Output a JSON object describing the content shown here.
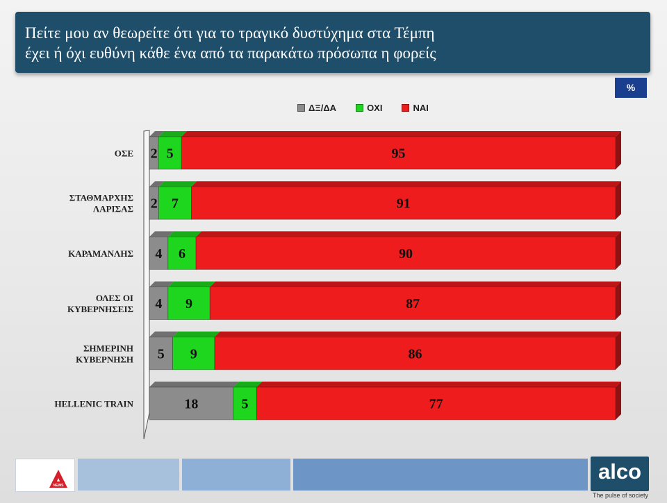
{
  "header": {
    "title": "Πείτε μου αν θεωρείτε ότι για το τραγικό δυστύχημα στα Τέμπη\nέχει ή όχι ευθύνη κάθε ένα από τα παρακάτω πρόσωπα η φορείς"
  },
  "unit_badge": "%",
  "legend": [
    {
      "label": "ΔΞ/ΔΑ",
      "color": "#8c8c8c"
    },
    {
      "label": "ΟΧΙ",
      "color": "#1fd61f"
    },
    {
      "label": "ΝΑΙ",
      "color": "#ee1c1c"
    }
  ],
  "chart_data": {
    "type": "bar",
    "orientation": "horizontal",
    "stacked": true,
    "categories": [
      [
        "ΟΣΕ"
      ],
      [
        "ΣΤΑΘΜΑΡΧΗΣ",
        "ΛΑΡΙΣΑΣ"
      ],
      [
        "ΚΑΡΑΜΑΝΛΗΣ"
      ],
      [
        "ΟΛΕΣ ΟΙ",
        "ΚΥΒΕΡΝΗΣΕΙΣ"
      ],
      [
        "ΣΗΜΕΡΙΝΗ",
        "ΚΥΒΕΡΝΗΣΗ"
      ],
      [
        "HELLENIC TRAIN"
      ]
    ],
    "series": [
      {
        "name": "ΔΞ/ΔΑ",
        "color": "#8c8c8c",
        "values": [
          2,
          2,
          4,
          4,
          5,
          18
        ]
      },
      {
        "name": "ΟΧΙ",
        "color": "#1fd61f",
        "values": [
          5,
          7,
          6,
          9,
          9,
          5
        ]
      },
      {
        "name": "ΝΑΙ",
        "color": "#ee1c1c",
        "values": [
          95,
          91,
          90,
          87,
          86,
          77
        ]
      }
    ],
    "legend_position": "top",
    "grid": false
  },
  "footer": {
    "news_logo_label": "NEWS",
    "brand": "alco",
    "tagline": "The pulse of society"
  }
}
